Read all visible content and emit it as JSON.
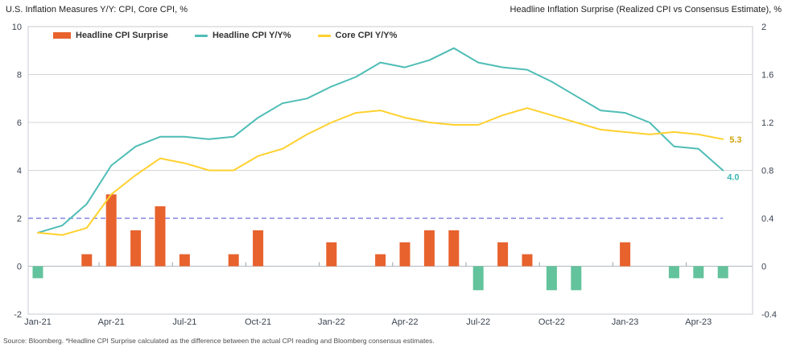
{
  "page": {
    "title_left": "U.S. Inflation Measures Y/Y: CPI, Core CPI, %",
    "title_right": "Headline Inflation Surprise (Realized CPI vs Consensus Estimate), %",
    "source_note": "Source: Bloomberg. *Headline CPI Surprise calculated as the difference between the actual CPI reading and Bloomberg consensus estimates."
  },
  "legend": {
    "items": [
      {
        "label": "Headline CPI Surprise",
        "type": "bar",
        "color": "#E8622D"
      },
      {
        "label": "Headline CPI Y/Y%",
        "type": "line",
        "color": "#4FBDB6"
      },
      {
        "label": "Core CPI Y/Y%",
        "type": "line",
        "color": "#FFD12E"
      }
    ]
  },
  "chart_data": {
    "type": "bar",
    "subtype": "combo-bar-line-dual-axis",
    "x_months": [
      "Jan-21",
      "Feb-21",
      "Mar-21",
      "Apr-21",
      "May-21",
      "Jun-21",
      "Jul-21",
      "Aug-21",
      "Sep-21",
      "Oct-21",
      "Nov-21",
      "Dec-21",
      "Jan-22",
      "Feb-22",
      "Mar-22",
      "Apr-22",
      "May-22",
      "Jun-22",
      "Jul-22",
      "Aug-22",
      "Sep-22",
      "Oct-22",
      "Nov-22",
      "Dec-22",
      "Jan-23",
      "Feb-23",
      "Mar-23",
      "Apr-23",
      "May-23"
    ],
    "x_axis_labels": [
      "Jan-21",
      "Apr-21",
      "Jul-21",
      "Oct-21",
      "Jan-22",
      "Apr-22",
      "Jul-22",
      "Oct-22",
      "Jan-23",
      "Apr-23"
    ],
    "left_axis": {
      "min": -2,
      "max": 10,
      "ticks": [
        10,
        8,
        6,
        4,
        2,
        0,
        -2
      ]
    },
    "right_axis": {
      "min": -0.4,
      "max": 2,
      "ticks": [
        "2",
        "1.6",
        "1.2",
        "0.8",
        "0.4",
        "0",
        "-0.4"
      ]
    },
    "series": [
      {
        "name": "Headline CPI Surprise",
        "axis": "right",
        "render": "bar",
        "values": [
          -0.1,
          0,
          0.1,
          0.6,
          0.3,
          0.5,
          0.1,
          0,
          0.1,
          0.3,
          0,
          0,
          0.2,
          0,
          0.1,
          0.2,
          0.3,
          0.3,
          -0.2,
          0.2,
          0.1,
          -0.2,
          -0.2,
          0,
          0.2,
          0,
          -0.1,
          -0.1,
          -0.1
        ]
      },
      {
        "name": "Headline CPI Y/Y%",
        "axis": "left",
        "render": "line",
        "color": "#4FBDB6",
        "values": [
          1.4,
          1.7,
          2.6,
          4.2,
          5.0,
          5.4,
          5.4,
          5.3,
          5.4,
          6.2,
          6.8,
          7.0,
          7.5,
          7.9,
          8.5,
          8.3,
          8.6,
          9.1,
          8.5,
          8.3,
          8.2,
          7.7,
          7.1,
          6.5,
          6.4,
          6.0,
          5.0,
          4.9,
          4.0
        ],
        "end_label": {
          "text": "4.0",
          "color": "#3FB8B2",
          "dx": 5,
          "dy": 12
        }
      },
      {
        "name": "Core CPI Y/Y%",
        "axis": "left",
        "render": "line",
        "color": "#FFD12E",
        "values": [
          1.4,
          1.3,
          1.6,
          3.0,
          3.8,
          4.5,
          4.3,
          4.0,
          4.0,
          4.6,
          4.9,
          5.5,
          6.0,
          6.4,
          6.5,
          6.2,
          6.0,
          5.9,
          5.9,
          6.3,
          6.6,
          6.3,
          6.0,
          5.7,
          5.6,
          5.5,
          5.6,
          5.5,
          5.3
        ],
        "end_label": {
          "text": "5.3",
          "color": "#CFA40B",
          "dx": 8,
          "dy": 4
        }
      }
    ],
    "reference_line": {
      "value_left": 2,
      "value_right": 0.4,
      "color": "#A3A3ED",
      "style": "dashed"
    },
    "colors": {
      "bar_positive": "#E8622D",
      "bar_negative": "#63C39C"
    },
    "grid": "horizontal",
    "legend_position": "top-inside"
  }
}
